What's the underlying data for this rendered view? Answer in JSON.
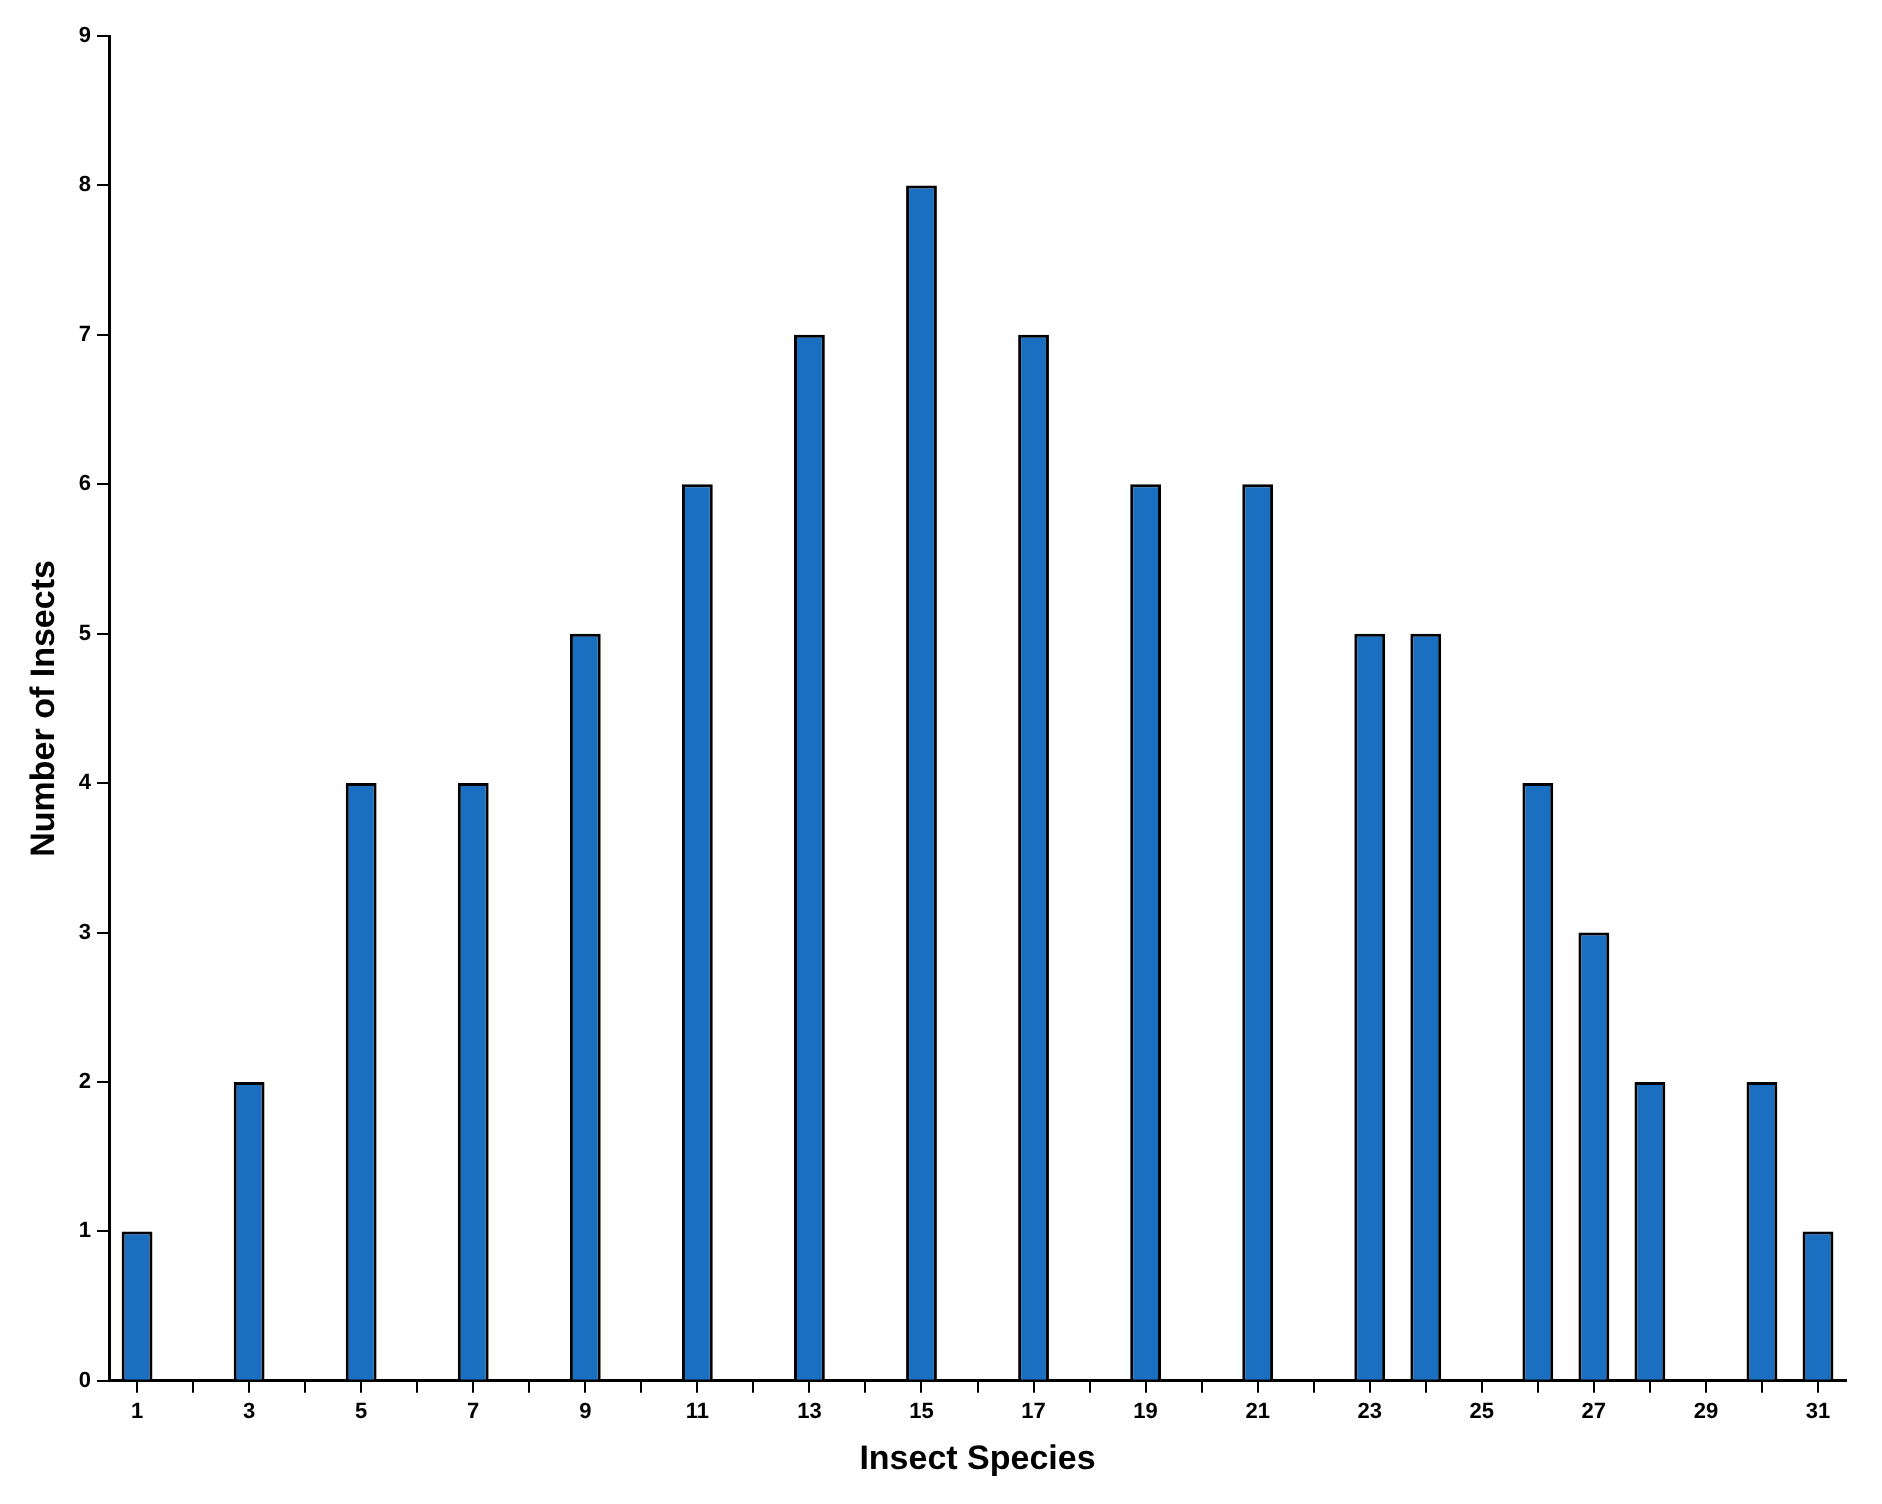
{
  "chart_data": {
    "type": "bar",
    "xlabel": "Insect Species",
    "ylabel": "Number of Insects",
    "x": [
      1,
      3,
      5,
      7,
      9,
      11,
      13,
      15,
      17,
      19,
      21,
      23,
      24,
      26,
      27,
      28,
      30,
      31
    ],
    "values": [
      1,
      2,
      4,
      4,
      5,
      6,
      7,
      8,
      7,
      6,
      6,
      5,
      5,
      4,
      3,
      2,
      2,
      1
    ],
    "color": "#1a6fc0",
    "xlim": [
      0.5,
      31.5
    ],
    "xticks": [
      1,
      {
        "value": 2,
        "label": null
      },
      3,
      {
        "value": 4,
        "label": null
      },
      5,
      {
        "value": 6,
        "label": null
      },
      7,
      {
        "value": 8,
        "label": null
      },
      9,
      {
        "value": 10,
        "label": null
      },
      11,
      {
        "value": 12,
        "label": null
      },
      13,
      {
        "value": 14,
        "label": null
      },
      15,
      {
        "value": 16,
        "label": null
      },
      17,
      {
        "value": 18,
        "label": null
      },
      19,
      {
        "value": 20,
        "label": null
      },
      21,
      {
        "value": 22,
        "label": null
      },
      23,
      {
        "value": 24,
        "label": null
      },
      25,
      {
        "value": 26,
        "label": null
      },
      27,
      {
        "value": 28,
        "label": null
      },
      29,
      {
        "value": 30,
        "label": null
      },
      31
    ],
    "ylim": [
      0,
      9
    ],
    "yticks": [
      0,
      1,
      2,
      3,
      4,
      5,
      6,
      7,
      8,
      9
    ],
    "grid": false,
    "legend": false
  }
}
